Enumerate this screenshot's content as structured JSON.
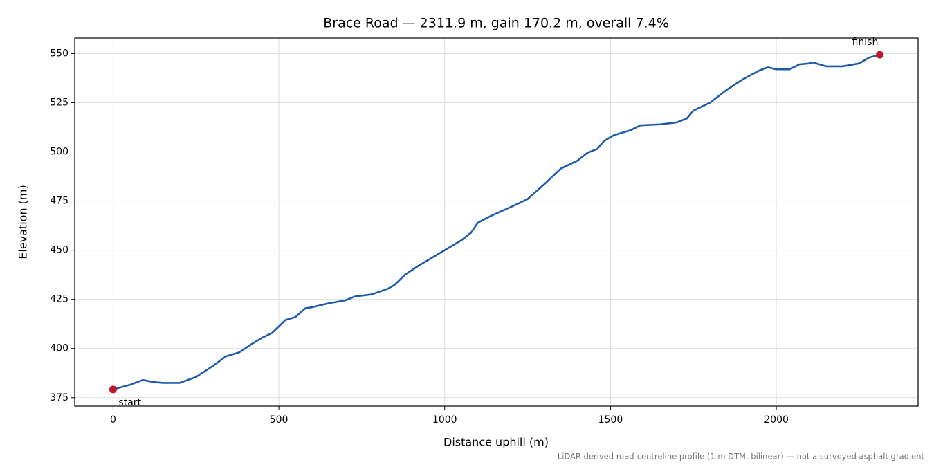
{
  "chart_data": {
    "type": "line",
    "title": "Brace Road — 2311.9 m, gain 170.2 m, overall 7.4%",
    "x_label": "Distance uphill (m)",
    "y_label": "Elevation (m)",
    "footnote": "LiDAR-derived road-centreline profile (1 m DTM, bilinear) — not a surveyed asphalt gradient",
    "x": [
      0,
      50,
      90,
      120,
      150,
      200,
      250,
      300,
      340,
      380,
      420,
      450,
      480,
      520,
      550,
      580,
      600,
      650,
      700,
      730,
      780,
      830,
      850,
      880,
      920,
      960,
      1000,
      1050,
      1080,
      1100,
      1140,
      1200,
      1250,
      1300,
      1350,
      1400,
      1430,
      1460,
      1480,
      1510,
      1560,
      1590,
      1650,
      1700,
      1730,
      1750,
      1800,
      1850,
      1900,
      1950,
      1975,
      2000,
      2040,
      2070,
      2100,
      2110,
      2150,
      2200,
      2250,
      2280,
      2311.9
    ],
    "series": [
      {
        "name": "Elevation",
        "color": "#1f5aa8",
        "values": [
          379.2,
          381.5,
          384,
          383,
          382.5,
          382.5,
          385.5,
          391,
          396,
          398,
          402.5,
          405.5,
          408,
          414.5,
          416,
          420.5,
          421,
          423,
          424.5,
          426.5,
          427.5,
          430.5,
          432.5,
          437.5,
          442,
          446,
          450,
          455,
          459,
          464,
          467.5,
          472,
          476,
          483.5,
          491.5,
          495.5,
          499.5,
          501.5,
          505.5,
          508.5,
          511,
          513.5,
          514,
          515,
          517,
          521,
          525,
          531.5,
          537,
          541.5,
          543,
          542,
          542,
          544.5,
          545,
          545.5,
          543.5,
          543.5,
          545,
          548,
          549.4
        ]
      }
    ],
    "annotations": [
      {
        "text": "start",
        "x": 0,
        "y": 379.2
      },
      {
        "text": "finish",
        "x": 2311.9,
        "y": 549.4
      }
    ],
    "marker_color": "#c0182a",
    "xlim": [
      -115.6,
      2427.5
    ],
    "ylim": [
      370.7,
      557.9
    ],
    "xticks": [
      0,
      500,
      1000,
      1500,
      2000
    ],
    "yticks": [
      375,
      400,
      425,
      450,
      475,
      500,
      525,
      550
    ],
    "grid": true
  }
}
